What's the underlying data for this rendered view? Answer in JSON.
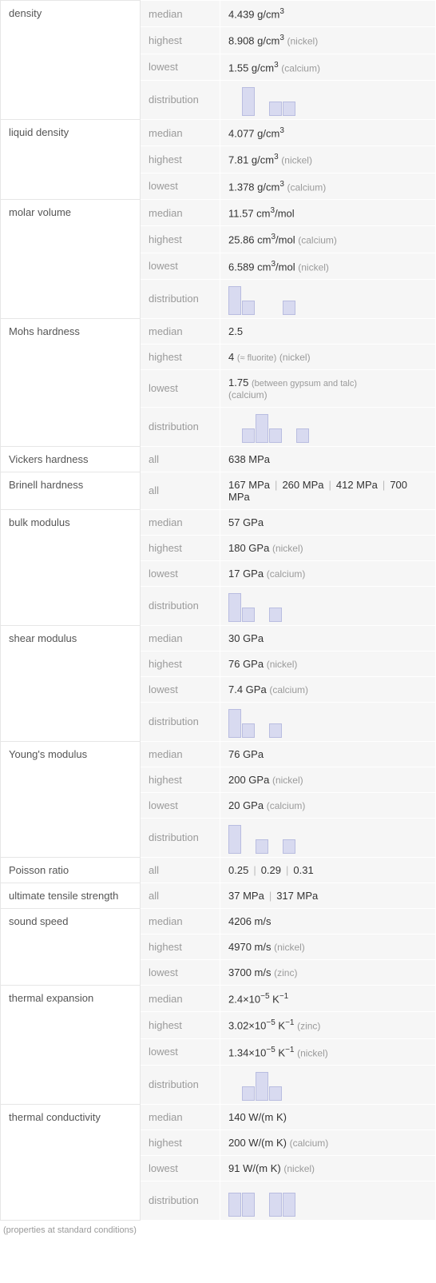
{
  "footnote": "(properties at standard conditions)",
  "groups": [
    {
      "name": "density",
      "rows": [
        {
          "stat": "median",
          "val": "4.439 g/cm",
          "sup": "3"
        },
        {
          "stat": "highest",
          "val": "8.908 g/cm",
          "sup": "3",
          "note": "(nickel)"
        },
        {
          "stat": "lowest",
          "val": "1.55 g/cm",
          "sup": "3",
          "note": "(calcium)"
        },
        {
          "stat": "distribution",
          "dist": [
            0,
            36,
            0,
            18,
            18,
            0,
            0,
            0
          ]
        }
      ]
    },
    {
      "name": "liquid density",
      "rows": [
        {
          "stat": "median",
          "val": "4.077 g/cm",
          "sup": "3"
        },
        {
          "stat": "highest",
          "val": "7.81 g/cm",
          "sup": "3",
          "note": "(nickel)"
        },
        {
          "stat": "lowest",
          "val": "1.378 g/cm",
          "sup": "3",
          "note": "(calcium)"
        }
      ]
    },
    {
      "name": "molar volume",
      "rows": [
        {
          "stat": "median",
          "val": "11.57 cm",
          "sup": "3",
          "post": "/mol"
        },
        {
          "stat": "highest",
          "val": "25.86 cm",
          "sup": "3",
          "post": "/mol",
          "note": "(calcium)"
        },
        {
          "stat": "lowest",
          "val": "6.589 cm",
          "sup": "3",
          "post": "/mol",
          "note": "(nickel)"
        },
        {
          "stat": "distribution",
          "dist": [
            36,
            18,
            0,
            0,
            18,
            0
          ]
        }
      ]
    },
    {
      "name": "Mohs hardness",
      "rows": [
        {
          "stat": "median",
          "val": "2.5"
        },
        {
          "stat": "highest",
          "val": "4",
          "note_sm": "(≈ fluorite)",
          "note": "(nickel)"
        },
        {
          "stat": "lowest",
          "val": "1.75",
          "note_sm": "(between gypsum and talc)",
          "note_br": "(calcium)"
        },
        {
          "stat": "distribution",
          "dist": [
            0,
            18,
            36,
            18,
            0,
            18,
            0
          ]
        }
      ]
    },
    {
      "name": "Vickers hardness",
      "rows": [
        {
          "stat": "all",
          "val": "638 MPa"
        }
      ]
    },
    {
      "name": "Brinell hardness",
      "rows": [
        {
          "stat": "all",
          "pipes": [
            "167 MPa",
            "260 MPa",
            "412 MPa",
            "700 MPa"
          ]
        }
      ]
    },
    {
      "name": "bulk modulus",
      "rows": [
        {
          "stat": "median",
          "val": "57 GPa"
        },
        {
          "stat": "highest",
          "val": "180 GPa",
          "note": "(nickel)"
        },
        {
          "stat": "lowest",
          "val": "17 GPa",
          "note": "(calcium)"
        },
        {
          "stat": "distribution",
          "dist": [
            36,
            18,
            0,
            18,
            0
          ]
        }
      ]
    },
    {
      "name": "shear modulus",
      "rows": [
        {
          "stat": "median",
          "val": "30 GPa"
        },
        {
          "stat": "highest",
          "val": "76 GPa",
          "note": "(nickel)"
        },
        {
          "stat": "lowest",
          "val": "7.4 GPa",
          "note": "(calcium)"
        },
        {
          "stat": "distribution",
          "dist": [
            36,
            18,
            0,
            18,
            0
          ]
        }
      ]
    },
    {
      "name": "Young's modulus",
      "rows": [
        {
          "stat": "median",
          "val": "76 GPa"
        },
        {
          "stat": "highest",
          "val": "200 GPa",
          "note": "(nickel)"
        },
        {
          "stat": "lowest",
          "val": "20 GPa",
          "note": "(calcium)"
        },
        {
          "stat": "distribution",
          "dist": [
            36,
            0,
            18,
            0,
            18,
            0
          ]
        }
      ]
    },
    {
      "name": "Poisson ratio",
      "rows": [
        {
          "stat": "all",
          "pipes": [
            "0.25",
            "0.29",
            "0.31"
          ]
        }
      ]
    },
    {
      "name": "ultimate tensile strength",
      "rows": [
        {
          "stat": "all",
          "pipes": [
            "37 MPa",
            "317 MPa"
          ]
        }
      ]
    },
    {
      "name": "sound speed",
      "rows": [
        {
          "stat": "median",
          "val": "4206 m/s"
        },
        {
          "stat": "highest",
          "val": "4970 m/s",
          "note": "(nickel)"
        },
        {
          "stat": "lowest",
          "val": "3700 m/s",
          "note": "(zinc)"
        }
      ]
    },
    {
      "name": "thermal expansion",
      "rows": [
        {
          "stat": "median",
          "sci_a": "2.4",
          "sci_exp": "−5",
          "sci_unit": " K",
          "sci_usup": "−1"
        },
        {
          "stat": "highest",
          "sci_a": "3.02",
          "sci_exp": "−5",
          "sci_unit": " K",
          "sci_usup": "−1",
          "note": "(zinc)"
        },
        {
          "stat": "lowest",
          "sci_a": "1.34",
          "sci_exp": "−5",
          "sci_unit": " K",
          "sci_usup": "−1",
          "note": "(nickel)"
        },
        {
          "stat": "distribution",
          "dist": [
            0,
            18,
            36,
            18,
            0
          ]
        }
      ]
    },
    {
      "name": "thermal conductivity",
      "rows": [
        {
          "stat": "median",
          "val": "140 W/(m K)"
        },
        {
          "stat": "highest",
          "val": "200 W/(m K)",
          "note": "(calcium)"
        },
        {
          "stat": "lowest",
          "val": "91 W/(m K)",
          "note": "(nickel)"
        },
        {
          "stat": "distribution",
          "dist": [
            30,
            30,
            0,
            30,
            30,
            0
          ]
        }
      ]
    }
  ]
}
